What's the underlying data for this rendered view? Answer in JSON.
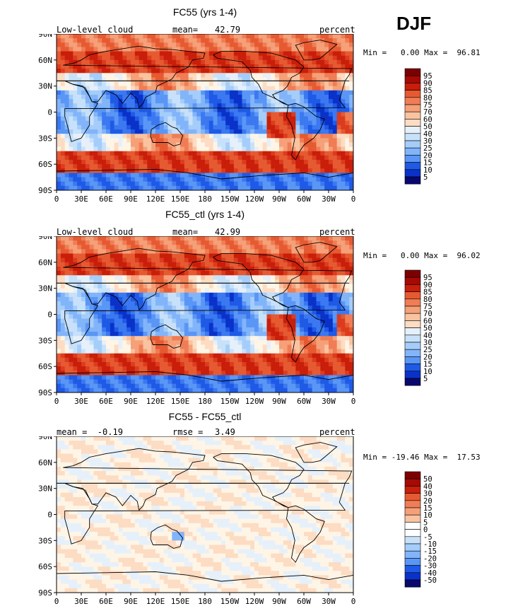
{
  "season": "DJF",
  "colors": [
    "#08086e",
    "#0a32c8",
    "#1e5ae6",
    "#3c78f0",
    "#5a96f5",
    "#82b4fa",
    "#a5cdfa",
    "#c8e1fa",
    "#e6f0fa",
    "#fff5e6",
    "#fcdcc3",
    "#fac3a0",
    "#f5a078",
    "#f07d55",
    "#e65a32",
    "#dc3c1e",
    "#c81e0a",
    "#a50a05",
    "#7d0000"
  ],
  "charts": [
    {
      "title": "FC55 (yrs 1-4)",
      "left_label": "Low-level cloud",
      "stat_label": "mean=",
      "stat_value": "42.79",
      "unit": "percent",
      "minmax": "Min =   0.00 Max =  96.81",
      "legend_labels": [
        "95",
        "90",
        "85",
        "80",
        "75",
        "70",
        "60",
        "50",
        "40",
        "30",
        "25",
        "20",
        "15",
        "10",
        "5"
      ]
    },
    {
      "title": "FC55_ctl (yrs 1-4)",
      "left_label": "Low-level cloud",
      "stat_label": "mean=",
      "stat_value": "42.99",
      "unit": "percent",
      "minmax": "Min =   0.00 Max =  96.02",
      "legend_labels": [
        "95",
        "90",
        "85",
        "80",
        "75",
        "70",
        "60",
        "50",
        "40",
        "30",
        "25",
        "20",
        "15",
        "10",
        "5"
      ]
    },
    {
      "title": "FC55 - FC55_ctl",
      "left_label": "mean =  -0.19",
      "stat_label": "rmse =",
      "stat_value": "3.49",
      "unit": "percent",
      "minmax": "Min = -19.46 Max =  17.53",
      "legend_labels": [
        "50",
        "40",
        "30",
        "20",
        "15",
        "10",
        "5",
        "0",
        "-5",
        "-10",
        "-15",
        "-20",
        "-30",
        "-40",
        "-50"
      ]
    }
  ],
  "chart_data": [
    {
      "type": "heatmap",
      "title": "FC55 (yrs 1-4)",
      "variable": "Low-level cloud",
      "unit": "percent",
      "mean": 42.79,
      "min": 0.0,
      "max": 96.81,
      "x_ticks": [
        "0",
        "30E",
        "60E",
        "90E",
        "120E",
        "150E",
        "180",
        "150W",
        "120W",
        "90W",
        "60W",
        "30W",
        "0"
      ],
      "y_ticks": [
        "90N",
        "60N",
        "30N",
        "0",
        "30S",
        "60S",
        "90S"
      ],
      "levels": [
        5,
        10,
        15,
        20,
        25,
        30,
        40,
        50,
        60,
        70,
        75,
        80,
        85,
        90,
        95
      ]
    },
    {
      "type": "heatmap",
      "title": "FC55_ctl (yrs 1-4)",
      "variable": "Low-level cloud",
      "unit": "percent",
      "mean": 42.99,
      "min": 0.0,
      "max": 96.02,
      "x_ticks": [
        "0",
        "30E",
        "60E",
        "90E",
        "120E",
        "150E",
        "180",
        "150W",
        "120W",
        "90W",
        "60W",
        "30W",
        "0"
      ],
      "y_ticks": [
        "90N",
        "60N",
        "30N",
        "0",
        "30S",
        "60S",
        "90S"
      ],
      "levels": [
        5,
        10,
        15,
        20,
        25,
        30,
        40,
        50,
        60,
        70,
        75,
        80,
        85,
        90,
        95
      ]
    },
    {
      "type": "heatmap",
      "title": "FC55 - FC55_ctl",
      "unit": "percent",
      "mean": -0.19,
      "rmse": 3.49,
      "min": -19.46,
      "max": 17.53,
      "x_ticks": [
        "0",
        "30E",
        "60E",
        "90E",
        "120E",
        "150E",
        "180",
        "150W",
        "120W",
        "90W",
        "60W",
        "30W",
        "0"
      ],
      "y_ticks": [
        "90N",
        "60N",
        "30N",
        "0",
        "30S",
        "60S",
        "90S"
      ],
      "levels": [
        -50,
        -40,
        -30,
        -20,
        -15,
        -10,
        -5,
        0,
        5,
        10,
        15,
        20,
        30,
        40,
        50
      ]
    }
  ]
}
